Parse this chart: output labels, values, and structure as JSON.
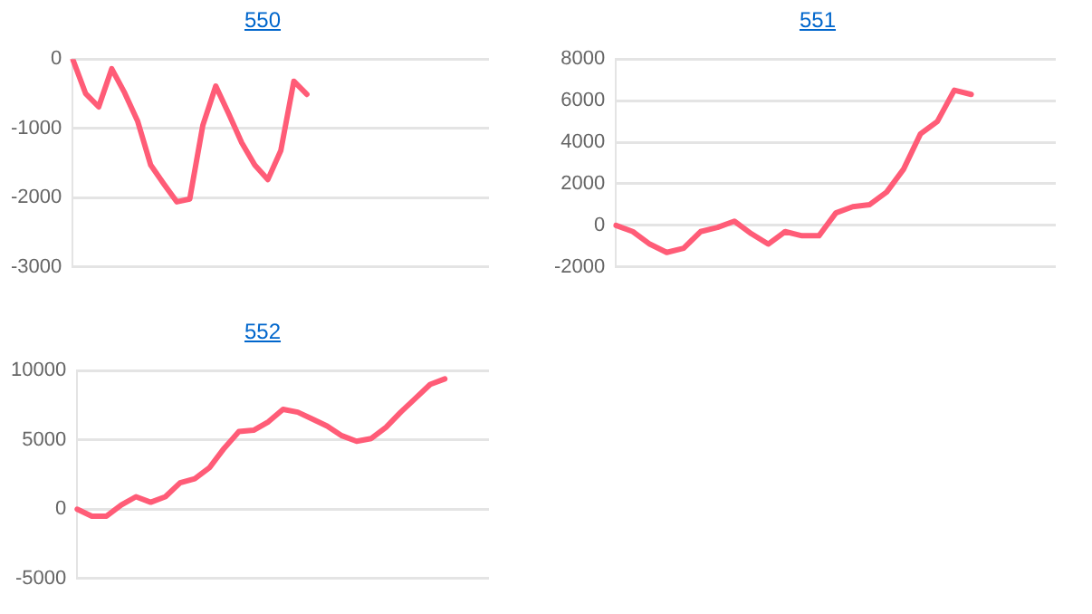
{
  "chart_data": [
    {
      "type": "line",
      "title": "550",
      "categories": [
        null,
        null,
        null,
        null,
        null,
        null,
        null,
        null,
        null,
        null,
        null,
        null,
        null,
        null,
        null,
        null,
        null,
        null,
        null,
        null,
        null,
        null,
        null,
        null,
        null,
        null,
        null,
        null,
        null,
        null,
        null,
        null,
        null
      ],
      "series": [
        {
          "color": "#ff5c77",
          "values": [
            0,
            -500,
            -690,
            -140,
            -490,
            -900,
            -1530,
            -1800,
            -2060,
            -2020,
            -960,
            -390,
            -790,
            -1210,
            -1530,
            -1740,
            -1320,
            -320,
            -510,
            null,
            null,
            null,
            null,
            null,
            null,
            null,
            null,
            null,
            null,
            null,
            null,
            null,
            null
          ]
        }
      ],
      "ylim": [
        -3000,
        0
      ],
      "yticks": [
        -3000,
        -2000,
        -1000,
        0
      ],
      "grid": "y",
      "tick_labels": "y",
      "marker": "none",
      "line_style": "solid",
      "legend": false
    },
    {
      "type": "line",
      "title": "551",
      "categories": [
        null,
        null,
        null,
        null,
        null,
        null,
        null,
        null,
        null,
        null,
        null,
        null,
        null,
        null,
        null,
        null,
        null,
        null,
        null,
        null,
        null,
        null,
        null,
        null,
        null,
        null,
        null
      ],
      "series": [
        {
          "color": "#ff5c77",
          "values": [
            0,
            -300,
            -900,
            -1300,
            -1100,
            -300,
            -100,
            200,
            -400,
            -900,
            -300,
            -500,
            -500,
            600,
            900,
            1000,
            1600,
            2700,
            4400,
            5000,
            6500,
            6300,
            null,
            null,
            null,
            null,
            null
          ]
        }
      ],
      "ylim": [
        -2000,
        8000
      ],
      "yticks": [
        -2000,
        0,
        2000,
        4000,
        6000,
        8000
      ],
      "grid": "y",
      "tick_labels": "y",
      "marker": "none",
      "line_style": "solid",
      "legend": false
    },
    {
      "type": "line",
      "title": "552",
      "categories": [
        null,
        null,
        null,
        null,
        null,
        null,
        null,
        null,
        null,
        null,
        null,
        null,
        null,
        null,
        null,
        null,
        null,
        null,
        null,
        null,
        null,
        null,
        null,
        null,
        null,
        null,
        null,
        null,
        null
      ],
      "series": [
        {
          "color": "#ff5c77",
          "values": [
            0,
            -500,
            -500,
            300,
            900,
            500,
            900,
            1900,
            2200,
            3000,
            4400,
            5600,
            5700,
            6300,
            7200,
            7000,
            6500,
            6000,
            5300,
            4900,
            5100,
            5900,
            7000,
            8000,
            9000,
            9400,
            null,
            null,
            null
          ]
        }
      ],
      "ylim": [
        -5000,
        10000
      ],
      "yticks": [
        -5000,
        0,
        5000,
        10000
      ],
      "grid": "y",
      "tick_labels": "y",
      "marker": "none",
      "line_style": "solid",
      "legend": false
    }
  ]
}
